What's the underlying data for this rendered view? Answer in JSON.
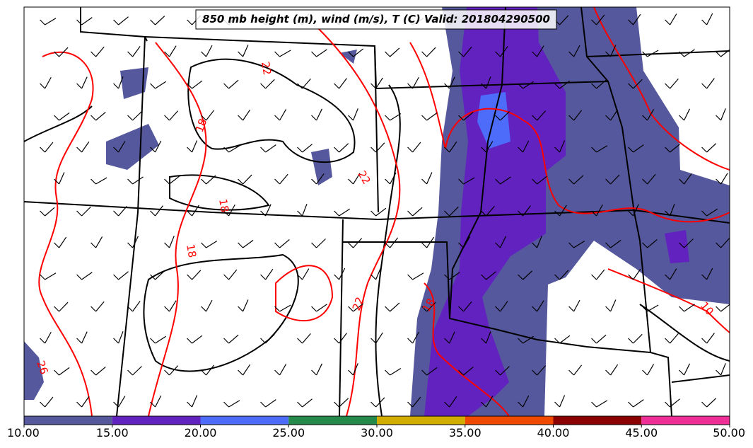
{
  "title": "850 mb height (m), wind (m/s), T (C) Valid: 201804290500",
  "colorbar": {
    "ticks": [
      {
        "value": 10,
        "label": "10.00"
      },
      {
        "value": 15,
        "label": "15.00"
      },
      {
        "value": 20,
        "label": "20.00"
      },
      {
        "value": 25,
        "label": "25.00"
      },
      {
        "value": 30,
        "label": "30.00"
      },
      {
        "value": 35,
        "label": "35.00"
      },
      {
        "value": 40,
        "label": "40.00"
      },
      {
        "value": 45,
        "label": "45.00"
      },
      {
        "value": 50,
        "label": "50.00"
      }
    ],
    "colors": [
      "#55589c",
      "#6222c0",
      "#4e6cfa",
      "#238a4a",
      "#d3ac00",
      "#f04a00",
      "#8b0000",
      "#ef2f98"
    ]
  },
  "contour_labels": [
    "22",
    "18",
    "18",
    "18",
    "22",
    "22",
    "18",
    "26",
    "10"
  ]
}
